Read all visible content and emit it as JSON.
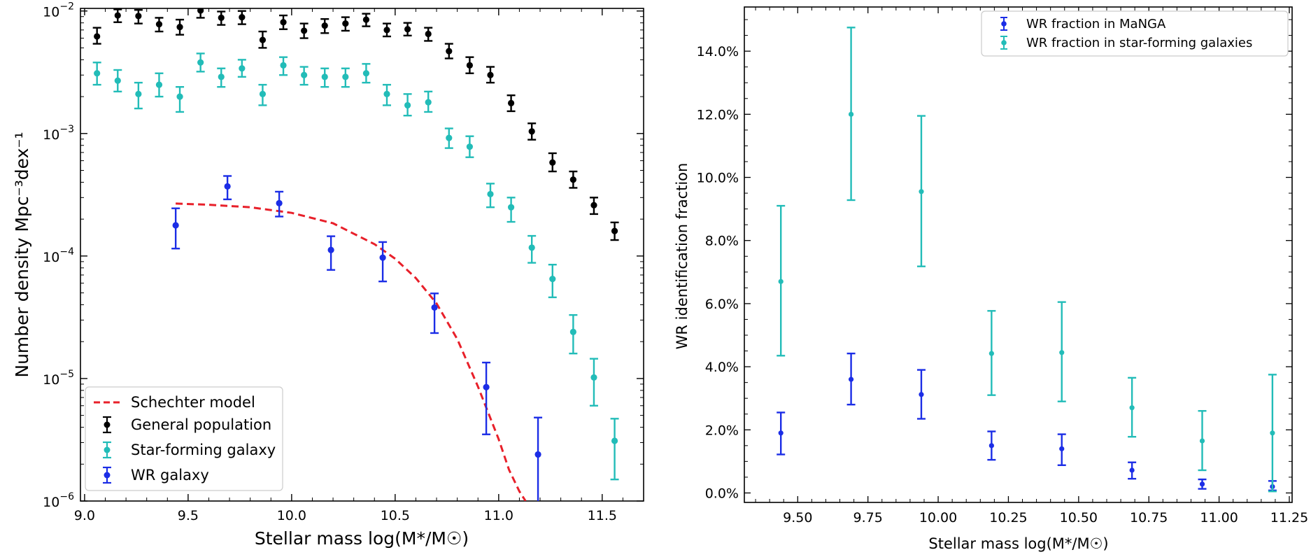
{
  "chart_data": [
    {
      "type": "scatter",
      "xlabel": "Stellar mass log(M*/M☉)",
      "ylabel": "Number density Mpc⁻³dex⁻¹",
      "yscale": "log",
      "xlim": [
        8.98,
        11.7
      ],
      "ylim": [
        1e-06,
        0.0105
      ],
      "x_ticks": [
        "9.0",
        "9.5",
        "10.0",
        "10.5",
        "11.0",
        "11.5"
      ],
      "y_ticks": [
        {
          "base": "10",
          "exp": "−2",
          "value": 0.01
        },
        {
          "base": "10",
          "exp": "−3",
          "value": 0.001
        },
        {
          "base": "10",
          "exp": "−4",
          "value": 0.0001
        },
        {
          "base": "10",
          "exp": "−5",
          "value": 1e-05
        },
        {
          "base": "10",
          "exp": "−6",
          "value": 1e-06
        }
      ],
      "legend_position": "lower-left",
      "grid": false,
      "series": [
        {
          "name": "Schechter model",
          "kind": "dashed-line",
          "color": "#e8202a",
          "x": [
            9.44,
            9.6,
            9.8,
            10.0,
            10.2,
            10.4,
            10.5,
            10.6,
            10.7,
            10.8,
            10.9,
            11.0,
            11.05,
            11.1,
            11.13
          ],
          "y": [
            0.000268,
            0.000262,
            0.00025,
            0.000225,
            0.000185,
            0.000125,
            9.5e-05,
            6.6e-05,
            4.1e-05,
            2.1e-05,
            8.6e-06,
            3.2e-06,
            1.8e-06,
            1.2e-06,
            1e-06
          ]
        },
        {
          "name": "General population",
          "kind": "errorbar",
          "color": "#000000",
          "x": [
            9.06,
            9.16,
            9.26,
            9.36,
            9.46,
            9.56,
            9.66,
            9.76,
            9.86,
            9.96,
            10.06,
            10.16,
            10.26,
            10.36,
            10.46,
            10.56,
            10.66,
            10.76,
            10.86,
            10.96,
            11.06,
            11.16,
            11.26,
            11.36,
            11.46,
            11.56
          ],
          "y": [
            0.0062,
            0.0092,
            0.0091,
            0.0078,
            0.0074,
            0.0101,
            0.0088,
            0.0089,
            0.0058,
            0.0081,
            0.0069,
            0.0076,
            0.0079,
            0.0085,
            0.007,
            0.0071,
            0.0065,
            0.0047,
            0.0036,
            0.003,
            0.00177,
            0.00104,
            0.00058,
            0.00042,
            0.00026,
            0.00016
          ],
          "err_lo": [
            0.0054,
            0.0081,
            0.0079,
            0.0068,
            0.0064,
            0.0088,
            0.0077,
            0.0078,
            0.005,
            0.0071,
            0.006,
            0.0066,
            0.0069,
            0.0075,
            0.0062,
            0.0063,
            0.0057,
            0.0041,
            0.0031,
            0.0026,
            0.00152,
            0.00089,
            0.00049,
            0.00036,
            0.00022,
            0.000135
          ],
          "err_hi": [
            0.0073,
            0.0103,
            0.0102,
            0.0088,
            0.0085,
            0.0112,
            0.0099,
            0.01,
            0.0068,
            0.0092,
            0.0079,
            0.0086,
            0.0089,
            0.0095,
            0.0079,
            0.008,
            0.0073,
            0.0054,
            0.0042,
            0.0035,
            0.00205,
            0.00121,
            0.00069,
            0.00049,
            0.0003,
            0.000188
          ]
        },
        {
          "name": "Star-forming galaxy",
          "kind": "errorbar",
          "color": "#22bcb8",
          "x": [
            9.06,
            9.16,
            9.26,
            9.36,
            9.46,
            9.56,
            9.66,
            9.76,
            9.86,
            9.96,
            10.06,
            10.16,
            10.26,
            10.36,
            10.46,
            10.56,
            10.66,
            10.76,
            10.86,
            10.96,
            11.06,
            11.16,
            11.26,
            11.36,
            11.46,
            11.56
          ],
          "y": [
            0.0031,
            0.0027,
            0.0021,
            0.0025,
            0.002,
            0.0038,
            0.0029,
            0.0034,
            0.0021,
            0.0036,
            0.003,
            0.0029,
            0.0029,
            0.0031,
            0.0021,
            0.0017,
            0.0018,
            0.00092,
            0.00078,
            0.00032,
            0.00025,
            0.000117,
            6.5e-05,
            2.4e-05,
            1.02e-05,
            3.1e-06
          ],
          "err_lo": [
            0.0025,
            0.0022,
            0.0016,
            0.002,
            0.0015,
            0.0032,
            0.0024,
            0.0029,
            0.0017,
            0.003,
            0.0025,
            0.0024,
            0.0024,
            0.0026,
            0.0017,
            0.0014,
            0.0015,
            0.00076,
            0.00064,
            0.00025,
            0.00019,
            8.8e-05,
            4.6e-05,
            1.6e-05,
            6e-06,
            1.5e-06
          ],
          "err_hi": [
            0.0038,
            0.0033,
            0.0026,
            0.0031,
            0.0024,
            0.0045,
            0.0034,
            0.004,
            0.0025,
            0.0042,
            0.0035,
            0.0034,
            0.0034,
            0.0037,
            0.0025,
            0.0021,
            0.0022,
            0.0011,
            0.00095,
            0.00039,
            0.0003,
            0.000146,
            8.5e-05,
            3.3e-05,
            1.45e-05,
            4.7e-06
          ]
        },
        {
          "name": "WR galaxy",
          "kind": "errorbar",
          "color": "#1b2de6",
          "x": [
            9.44,
            9.69,
            9.94,
            10.19,
            10.44,
            10.69,
            10.94,
            11.19
          ],
          "y": [
            0.000178,
            0.00037,
            0.00027,
            0.000112,
            9.7e-05,
            3.8e-05,
            8.5e-06,
            2.4e-06
          ],
          "err_lo": [
            0.000115,
            0.00029,
            0.00021,
            7.7e-05,
            6.2e-05,
            2.35e-05,
            3.5e-06,
            9.5e-07
          ],
          "err_hi": [
            0.000245,
            0.00045,
            0.000335,
            0.000145,
            0.00013,
            4.95e-05,
            1.35e-05,
            4.8e-06
          ]
        }
      ]
    },
    {
      "type": "scatter",
      "xlabel": "Stellar mass log(M*/M☉)",
      "ylabel": "WR identification fraction",
      "xlim": [
        9.31,
        11.26
      ],
      "ylim": [
        -0.3,
        15.4
      ],
      "x_ticks": [
        "9.50",
        "9.75",
        "10.00",
        "10.25",
        "10.50",
        "10.75",
        "11.00",
        "11.25"
      ],
      "y_ticks": [
        "0.0%",
        "2.0%",
        "4.0%",
        "6.0%",
        "8.0%",
        "10.0%",
        "12.0%",
        "14.0%"
      ],
      "legend_position": "top-right",
      "grid": false,
      "series": [
        {
          "name": "WR fraction in MaNGA",
          "color": "#1b2de6",
          "x": [
            9.44,
            9.69,
            9.94,
            10.19,
            10.44,
            10.69,
            10.94,
            11.19
          ],
          "y": [
            1.9,
            3.6,
            3.12,
            1.5,
            1.4,
            0.72,
            0.28,
            0.2
          ],
          "err_lo": [
            1.22,
            2.8,
            2.35,
            1.05,
            0.88,
            0.45,
            0.13,
            0.08
          ],
          "err_hi": [
            2.55,
            4.42,
            3.9,
            1.95,
            1.86,
            0.97,
            0.43,
            0.38
          ]
        },
        {
          "name": "WR fraction in star-forming galaxies",
          "color": "#22bcb8",
          "x": [
            9.44,
            9.69,
            9.94,
            10.19,
            10.44,
            10.69,
            10.94,
            11.19
          ],
          "y": [
            6.7,
            12.0,
            9.55,
            4.42,
            4.45,
            2.7,
            1.65,
            1.9
          ],
          "err_lo": [
            4.35,
            9.28,
            7.18,
            3.1,
            2.9,
            1.78,
            0.72,
            0.05
          ],
          "err_hi": [
            9.1,
            14.75,
            11.95,
            5.77,
            6.05,
            3.65,
            2.6,
            3.75
          ]
        }
      ]
    }
  ]
}
